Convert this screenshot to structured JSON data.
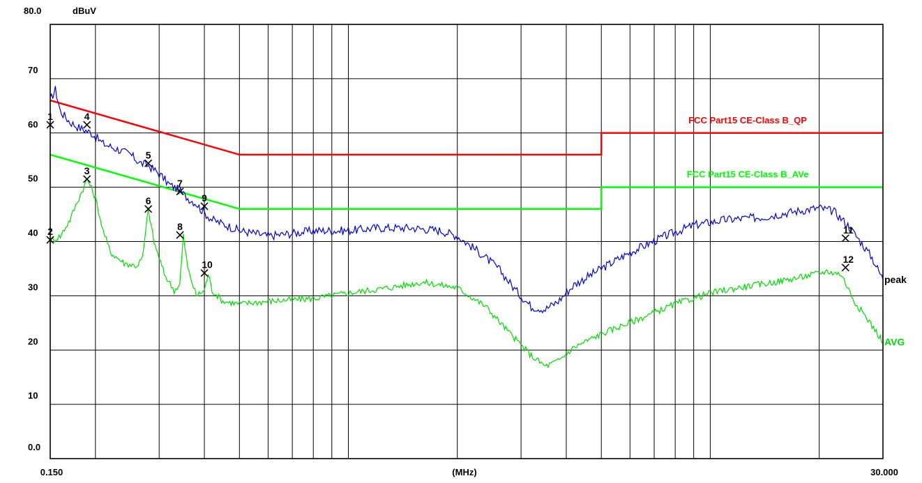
{
  "chart_data": {
    "type": "line",
    "yunit": "dBuV",
    "xlabel": "(MHz)",
    "x_scale": "log",
    "xlim": [
      0.15,
      30.0
    ],
    "ylim": [
      0,
      80
    ],
    "x_tick_labels": {
      "min": "0.150",
      "max": "30.000"
    },
    "y_ticks": [
      {
        "value": 80,
        "label": "80.0"
      },
      {
        "value": 70,
        "label": "70"
      },
      {
        "value": 60,
        "label": "60"
      },
      {
        "value": 50,
        "label": "50"
      },
      {
        "value": 40,
        "label": "40"
      },
      {
        "value": 30,
        "label": "30"
      },
      {
        "value": 20,
        "label": "20"
      },
      {
        "value": 10,
        "label": "10"
      },
      {
        "value": 0,
        "label": "0.0"
      }
    ],
    "grid": true,
    "limits": [
      {
        "name": "FCC Part15 CE-Class B_QP",
        "color": "#ff0000",
        "points": [
          [
            0.15,
            66
          ],
          [
            0.5,
            56
          ],
          [
            5,
            56
          ],
          [
            5,
            60
          ],
          [
            30,
            60
          ]
        ]
      },
      {
        "name": "FCC Part15 CE-Class B_AVe",
        "color": "#00ff00",
        "points": [
          [
            0.15,
            56
          ],
          [
            0.5,
            46
          ],
          [
            5,
            46
          ],
          [
            5,
            50
          ],
          [
            30,
            50
          ]
        ]
      }
    ],
    "series": [
      {
        "name": "peak",
        "color": "#0000dd",
        "points": [
          [
            0.15,
            66
          ],
          [
            0.155,
            68
          ],
          [
            0.16,
            64
          ],
          [
            0.17,
            62
          ],
          [
            0.18,
            61
          ],
          [
            0.195,
            60
          ],
          [
            0.21,
            58
          ],
          [
            0.23,
            57
          ],
          [
            0.25,
            56
          ],
          [
            0.265,
            54.5
          ],
          [
            0.28,
            54
          ],
          [
            0.3,
            52.5
          ],
          [
            0.32,
            50.5
          ],
          [
            0.34,
            49.5
          ],
          [
            0.36,
            48
          ],
          [
            0.38,
            47
          ],
          [
            0.39,
            46
          ],
          [
            0.42,
            44
          ],
          [
            0.46,
            43
          ],
          [
            0.5,
            42
          ],
          [
            0.55,
            41.5
          ],
          [
            0.6,
            41
          ],
          [
            0.7,
            41.5
          ],
          [
            0.8,
            42
          ],
          [
            1.0,
            42
          ],
          [
            1.2,
            42.5
          ],
          [
            1.5,
            42.5
          ],
          [
            1.8,
            42
          ],
          [
            2.0,
            41
          ],
          [
            2.3,
            38
          ],
          [
            2.6,
            35
          ],
          [
            2.9,
            31
          ],
          [
            3.2,
            28
          ],
          [
            3.5,
            27.5
          ],
          [
            3.8,
            29
          ],
          [
            4.2,
            32
          ],
          [
            5.0,
            35
          ],
          [
            6.0,
            38
          ],
          [
            7.5,
            41
          ],
          [
            9.0,
            43
          ],
          [
            11.0,
            44
          ],
          [
            14.0,
            44.5
          ],
          [
            17.0,
            45.5
          ],
          [
            20.0,
            46.2
          ],
          [
            22.0,
            45.5
          ],
          [
            24.0,
            43
          ],
          [
            26.0,
            40
          ],
          [
            28.0,
            37
          ],
          [
            30.0,
            33
          ]
        ]
      },
      {
        "name": "AVG",
        "color": "#00dd00",
        "points": [
          [
            0.15,
            40
          ],
          [
            0.16,
            41
          ],
          [
            0.17,
            44
          ],
          [
            0.18,
            48
          ],
          [
            0.19,
            51.5
          ],
          [
            0.2,
            48
          ],
          [
            0.21,
            42
          ],
          [
            0.22,
            38
          ],
          [
            0.24,
            36
          ],
          [
            0.26,
            35.5
          ],
          [
            0.27,
            37
          ],
          [
            0.28,
            46
          ],
          [
            0.29,
            40
          ],
          [
            0.31,
            34
          ],
          [
            0.33,
            31
          ],
          [
            0.342,
            32
          ],
          [
            0.35,
            41
          ],
          [
            0.36,
            35
          ],
          [
            0.38,
            30
          ],
          [
            0.4,
            31
          ],
          [
            0.41,
            34
          ],
          [
            0.42,
            31
          ],
          [
            0.45,
            29
          ],
          [
            0.5,
            28.5
          ],
          [
            0.6,
            29
          ],
          [
            0.8,
            29.5
          ],
          [
            1.0,
            30.5
          ],
          [
            1.3,
            31.5
          ],
          [
            1.6,
            32.5
          ],
          [
            2.0,
            31.5
          ],
          [
            2.4,
            28
          ],
          [
            2.8,
            23
          ],
          [
            3.2,
            19
          ],
          [
            3.5,
            17
          ],
          [
            3.8,
            18
          ],
          [
            4.2,
            20.5
          ],
          [
            5.0,
            23
          ],
          [
            6.5,
            26
          ],
          [
            8.0,
            28.5
          ],
          [
            10.0,
            30.5
          ],
          [
            12.0,
            31.5
          ],
          [
            15.0,
            32.5
          ],
          [
            18.0,
            33.5
          ],
          [
            21.0,
            34.5
          ],
          [
            23.0,
            34
          ],
          [
            25.0,
            29
          ],
          [
            27.0,
            26
          ],
          [
            29.0,
            23
          ],
          [
            30.0,
            21.5
          ]
        ]
      }
    ],
    "markers": [
      {
        "label": "1",
        "freq": 0.15,
        "level": 61.5
      },
      {
        "label": "2",
        "freq": 0.15,
        "level": 40.3
      },
      {
        "label": "3",
        "freq": 0.1895,
        "level": 51.5
      },
      {
        "label": "4",
        "freq": 0.1895,
        "level": 61.5
      },
      {
        "label": "5",
        "freq": 0.28,
        "level": 54.4
      },
      {
        "label": "6",
        "freq": 0.28,
        "level": 46.0
      },
      {
        "label": "7",
        "freq": 0.3425,
        "level": 49.2
      },
      {
        "label": "8",
        "freq": 0.3425,
        "level": 41.2
      },
      {
        "label": "9",
        "freq": 0.4,
        "level": 46.5
      },
      {
        "label": "10",
        "freq": 0.4,
        "level": 34.2
      },
      {
        "label": "11",
        "freq": 23.64,
        "level": 40.6
      },
      {
        "label": "12",
        "freq": 23.64,
        "level": 35.2
      }
    ]
  }
}
